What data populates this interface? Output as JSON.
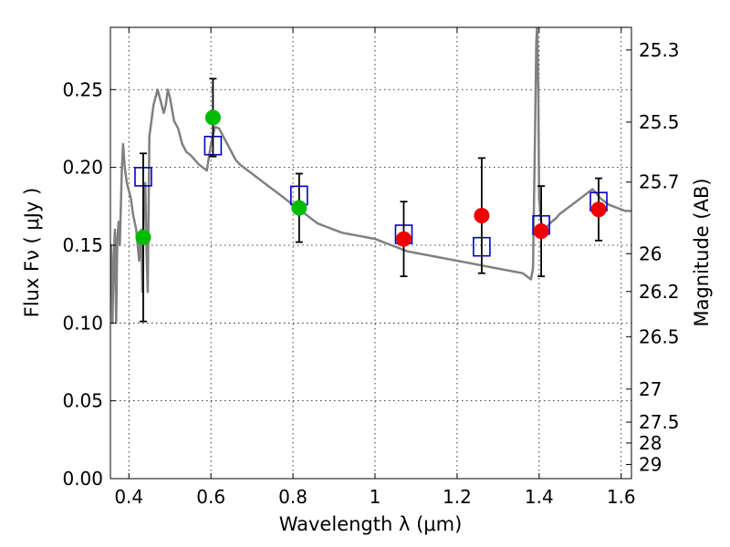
{
  "chart_data": {
    "type": "scatter",
    "xlabel": "Wavelength  λ (μm)",
    "ylabel": "Flux  Fν  ( μJy )",
    "ylabel_right": "Magnitude (AB)",
    "xlim": [
      0.355,
      1.625
    ],
    "ylim": [
      0.0,
      0.29
    ],
    "grid": true,
    "x_ticks": [
      {
        "value": 0.4,
        "label": "0.4"
      },
      {
        "value": 0.6,
        "label": "0.6"
      },
      {
        "value": 0.8,
        "label": "0.8"
      },
      {
        "value": 1.0,
        "label": "1"
      },
      {
        "value": 1.2,
        "label": "1.2"
      },
      {
        "value": 1.4,
        "label": "1.4"
      },
      {
        "value": 1.6,
        "label": "1.6"
      }
    ],
    "y_ticks": [
      {
        "value": 0.0,
        "label": "0.00"
      },
      {
        "value": 0.05,
        "label": "0.05"
      },
      {
        "value": 0.1,
        "label": "0.10"
      },
      {
        "value": 0.15,
        "label": "0.15"
      },
      {
        "value": 0.2,
        "label": "0.20"
      },
      {
        "value": 0.25,
        "label": "0.25"
      }
    ],
    "mag_ticks": [
      {
        "value": 25.3,
        "label": "25.3"
      },
      {
        "value": 25.5,
        "label": "25.5"
      },
      {
        "value": 25.7,
        "label": "25.7"
      },
      {
        "value": 26.0,
        "label": "26"
      },
      {
        "value": 26.2,
        "label": "26.2"
      },
      {
        "value": 26.5,
        "label": "26.5"
      },
      {
        "value": 27.0,
        "label": "27"
      },
      {
        "value": 27.5,
        "label": "27.5"
      },
      {
        "value": 28.0,
        "label": "28"
      },
      {
        "value": 29.0,
        "label": "29"
      }
    ],
    "series": [
      {
        "name": "model",
        "kind": "line",
        "color": "#808080",
        "x": [
          0.355,
          0.357,
          0.36,
          0.363,
          0.366,
          0.369,
          0.372,
          0.375,
          0.378,
          0.38,
          0.383,
          0.386,
          0.39,
          0.395,
          0.4,
          0.405,
          0.41,
          0.418,
          0.425,
          0.43,
          0.433,
          0.436,
          0.44,
          0.443,
          0.446,
          0.45,
          0.455,
          0.46,
          0.465,
          0.47,
          0.475,
          0.48,
          0.485,
          0.49,
          0.495,
          0.5,
          0.51,
          0.52,
          0.53,
          0.54,
          0.55,
          0.56,
          0.57,
          0.58,
          0.59,
          0.6,
          0.61,
          0.62,
          0.63,
          0.64,
          0.65,
          0.66,
          0.67,
          0.68,
          0.69,
          0.7,
          0.71,
          0.72,
          0.73,
          0.74,
          0.75,
          0.76,
          0.77,
          0.78,
          0.79,
          0.8,
          0.81,
          0.82,
          0.83,
          0.84,
          0.85,
          0.86,
          0.87,
          0.88,
          0.9,
          0.92,
          0.94,
          0.96,
          0.98,
          1.0,
          1.02,
          1.04,
          1.06,
          1.08,
          1.1,
          1.12,
          1.14,
          1.16,
          1.18,
          1.2,
          1.22,
          1.24,
          1.26,
          1.28,
          1.3,
          1.32,
          1.34,
          1.36,
          1.365,
          1.37,
          1.375,
          1.38,
          1.385,
          1.39,
          1.393,
          1.395,
          1.398,
          1.4,
          1.405,
          1.41,
          1.42,
          1.43,
          1.44,
          1.45,
          1.46,
          1.47,
          1.48,
          1.49,
          1.5,
          1.51,
          1.52,
          1.53,
          1.54,
          1.55,
          1.56,
          1.57,
          1.58,
          1.59,
          1.6,
          1.61,
          1.625
        ],
        "y": [
          0.12,
          0.15,
          0.1,
          0.14,
          0.16,
          0.1,
          0.155,
          0.165,
          0.15,
          0.17,
          0.2,
          0.215,
          0.2,
          0.19,
          0.185,
          0.18,
          0.17,
          0.16,
          0.14,
          0.16,
          0.12,
          0.17,
          0.19,
          0.145,
          0.12,
          0.22,
          0.23,
          0.24,
          0.245,
          0.25,
          0.245,
          0.24,
          0.235,
          0.24,
          0.25,
          0.245,
          0.23,
          0.225,
          0.215,
          0.21,
          0.208,
          0.205,
          0.202,
          0.2,
          0.198,
          0.215,
          0.226,
          0.225,
          0.22,
          0.215,
          0.21,
          0.205,
          0.202,
          0.2,
          0.198,
          0.196,
          0.194,
          0.192,
          0.19,
          0.188,
          0.186,
          0.184,
          0.182,
          0.18,
          0.178,
          0.176,
          0.174,
          0.172,
          0.17,
          0.168,
          0.166,
          0.164,
          0.163,
          0.162,
          0.16,
          0.158,
          0.157,
          0.156,
          0.155,
          0.154,
          0.152,
          0.15,
          0.148,
          0.146,
          0.145,
          0.144,
          0.143,
          0.142,
          0.141,
          0.14,
          0.139,
          0.138,
          0.137,
          0.136,
          0.135,
          0.134,
          0.133,
          0.132,
          0.131,
          0.13,
          0.129,
          0.128,
          0.135,
          0.22,
          0.28,
          0.29,
          0.25,
          0.18,
          0.165,
          0.16,
          0.162,
          0.165,
          0.167,
          0.17,
          0.172,
          0.174,
          0.176,
          0.178,
          0.18,
          0.182,
          0.184,
          0.186,
          0.183,
          0.18,
          0.178,
          0.176,
          0.175,
          0.174,
          0.173,
          0.172,
          0.172
        ]
      },
      {
        "name": "model-photometry",
        "kind": "open-square",
        "color": "#0000cc",
        "x": [
          0.435,
          0.605,
          0.815,
          1.07,
          1.26,
          1.405,
          1.545
        ],
        "y": [
          0.194,
          0.214,
          0.182,
          0.157,
          0.149,
          0.163,
          0.178
        ]
      },
      {
        "name": "observed-green",
        "kind": "filled-circle",
        "color": "#00bb00",
        "x": [
          0.435,
          0.605,
          0.815
        ],
        "y": [
          0.155,
          0.232,
          0.174
        ],
        "yerr": [
          0.054,
          0.025,
          0.022
        ]
      },
      {
        "name": "observed-red",
        "kind": "filled-circle",
        "color": "#ee0000",
        "x": [
          1.07,
          1.26,
          1.405,
          1.545
        ],
        "y": [
          0.154,
          0.169,
          0.159,
          0.173
        ],
        "yerr": [
          0.024,
          0.037,
          0.029,
          0.02
        ]
      }
    ]
  }
}
